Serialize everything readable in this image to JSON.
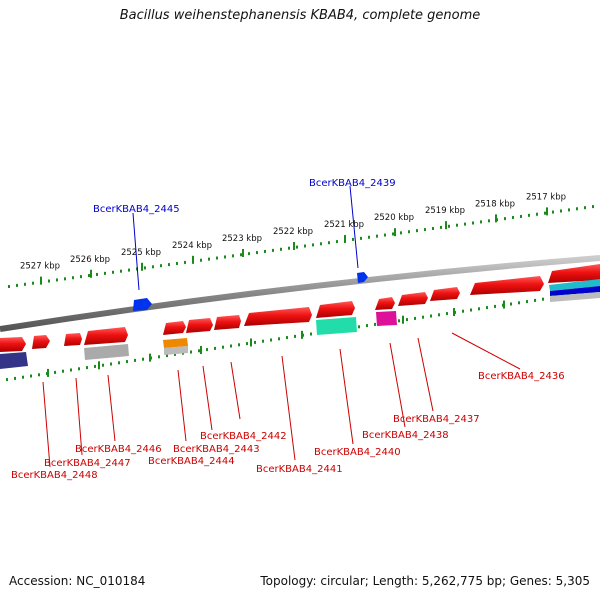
{
  "title": "Bacillus weihenstephanensis KBAB4, complete genome",
  "footer": {
    "accession": "Accession: NC_010184",
    "topology": "Topology: circular; Length: 5,262,775 bp; Genes: 5,305"
  },
  "colors": {
    "gene_red": "#ee1111",
    "backbone": "#888888",
    "ticks": "#1a8a1a",
    "label_red": "#cc0000",
    "label_blue": "#0000cc",
    "blue_gene": "#0033ee",
    "teal_gene": "#22ddaa",
    "orange_gene": "#ee8800",
    "magenta_gene": "#dd1199",
    "navy_gene": "#333388",
    "silver_gene": "#bbbbbb"
  },
  "ruler_ticks": [
    "2527 kbp",
    "2526 kbp",
    "2525 kbp",
    "2524 kbp",
    "2523 kbp",
    "2522 kbp",
    "2521 kbp",
    "2520 kbp",
    "2519 kbp",
    "2518 kbp",
    "2517 kbp"
  ],
  "gene_labels_top": [
    "BcerKBAB4_2445",
    "BcerKBAB4_2439"
  ],
  "gene_labels_bottom": [
    "BcerKBAB4_2448",
    "BcerKBAB4_2447",
    "BcerKBAB4_2446",
    "BcerKBAB4_2444",
    "BcerKBAB4_2443",
    "BcerKBAB4_2442",
    "BcerKBAB4_2441",
    "BcerKBAB4_2440",
    "BcerKBAB4_2438",
    "BcerKBAB4_2437",
    "BcerKBAB4_2436"
  ]
}
